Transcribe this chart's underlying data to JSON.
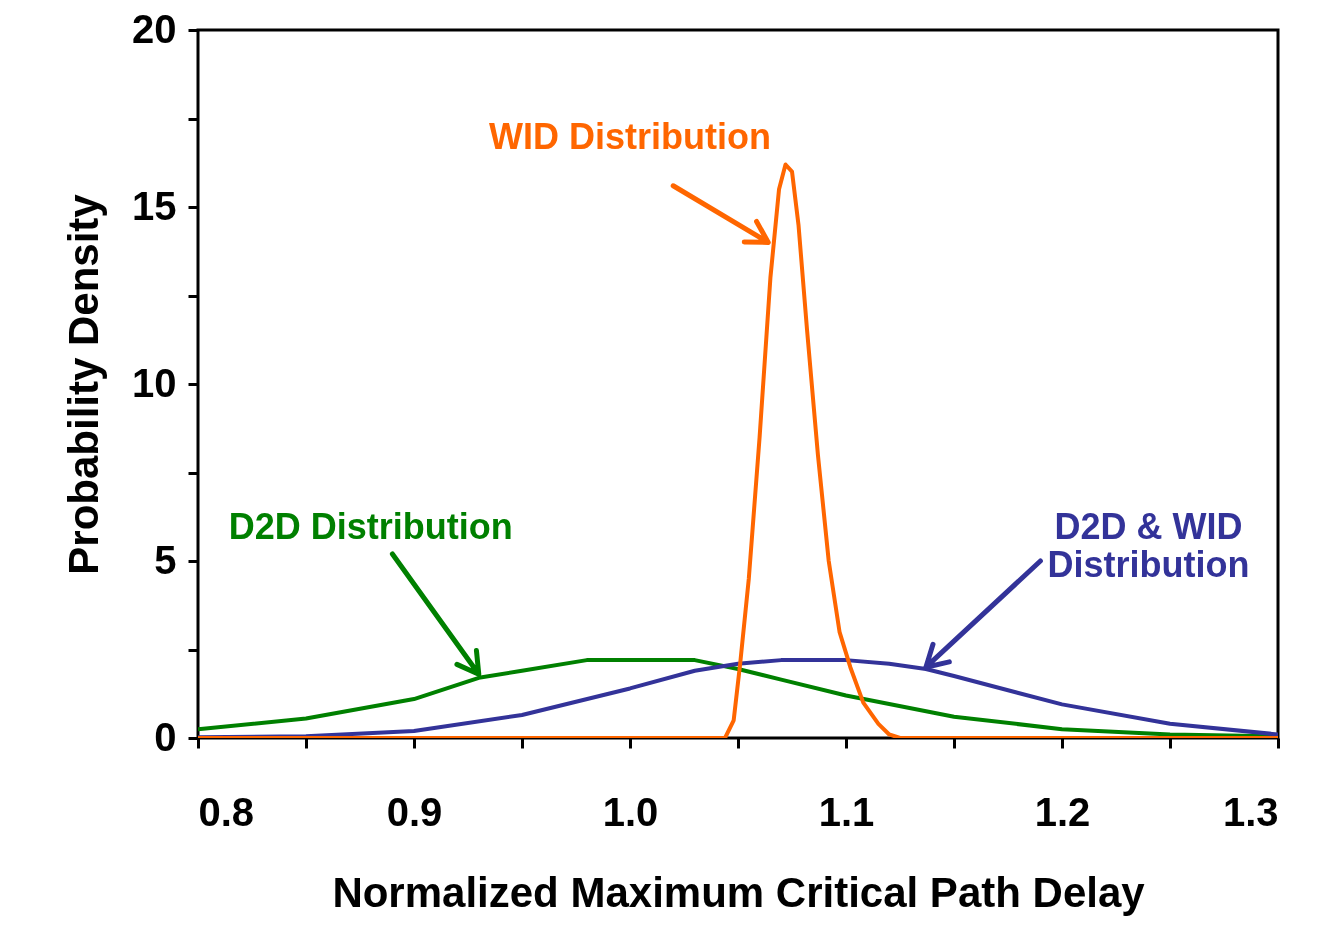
{
  "chart_data": {
    "type": "line",
    "xlabel": "Normalized Maximum Critical Path Delay",
    "ylabel": "Probability Density",
    "xlim": [
      0.8,
      1.3
    ],
    "ylim": [
      0,
      20
    ],
    "xticks": [
      {
        "value": 0.8,
        "label": "0.8"
      },
      {
        "value": 0.85,
        "label": null
      },
      {
        "value": 0.9,
        "label": "0.9"
      },
      {
        "value": 0.95,
        "label": null
      },
      {
        "value": 1.0,
        "label": "1.0"
      },
      {
        "value": 1.05,
        "label": null
      },
      {
        "value": 1.1,
        "label": "1.1"
      },
      {
        "value": 1.15,
        "label": null
      },
      {
        "value": 1.2,
        "label": "1.2"
      },
      {
        "value": 1.25,
        "label": null
      },
      {
        "value": 1.3,
        "label": "1.3"
      }
    ],
    "yticks": [
      0,
      {
        "value": 2.5,
        "label": null
      },
      5,
      {
        "value": 7.5,
        "label": null
      },
      10,
      {
        "value": 12.5,
        "label": null
      },
      15,
      {
        "value": 17.5,
        "label": null
      },
      20
    ],
    "grid": false,
    "legend": false,
    "marker": "none",
    "line_style": "solid",
    "series": [
      {
        "color": "#008000",
        "x": [
          0.8,
          0.85,
          0.9,
          0.93,
          0.95,
          0.98,
          1.0,
          1.03,
          1.05,
          1.07,
          1.1,
          1.15,
          1.2,
          1.25,
          1.3
        ],
        "values": [
          0.25,
          0.55,
          1.1,
          1.7,
          1.9,
          2.2,
          2.2,
          2.2,
          1.95,
          1.65,
          1.2,
          0.6,
          0.25,
          0.1,
          0.05
        ]
      },
      {
        "color": "#333399",
        "x": [
          0.8,
          0.85,
          0.9,
          0.95,
          1.0,
          1.03,
          1.05,
          1.07,
          1.1,
          1.12,
          1.137,
          1.15,
          1.2,
          1.25,
          1.3
        ],
        "values": [
          0.02,
          0.05,
          0.2,
          0.65,
          1.4,
          1.9,
          2.1,
          2.2,
          2.2,
          2.1,
          1.95,
          1.75,
          0.95,
          0.4,
          0.1
        ]
      },
      {
        "color": "#ff6600",
        "x": [
          0.8,
          1.044,
          1.048,
          1.051,
          1.055,
          1.06,
          1.065,
          1.069,
          1.072,
          1.075,
          1.078,
          1.082,
          1.087,
          1.092,
          1.097,
          1.102,
          1.108,
          1.115,
          1.12,
          1.125,
          1.3
        ],
        "values": [
          0,
          0,
          0.5,
          2.1,
          4.5,
          8.5,
          13,
          15.5,
          16.2,
          16,
          14.5,
          11.5,
          8,
          5,
          3,
          2,
          1,
          0.4,
          0.1,
          0,
          0
        ]
      }
    ],
    "annotations": [
      {
        "text": "WID Distribution",
        "x": 1.064,
        "y": 14
      },
      "D2D Distribution",
      "D2D & WID\nDistribution"
    ]
  }
}
